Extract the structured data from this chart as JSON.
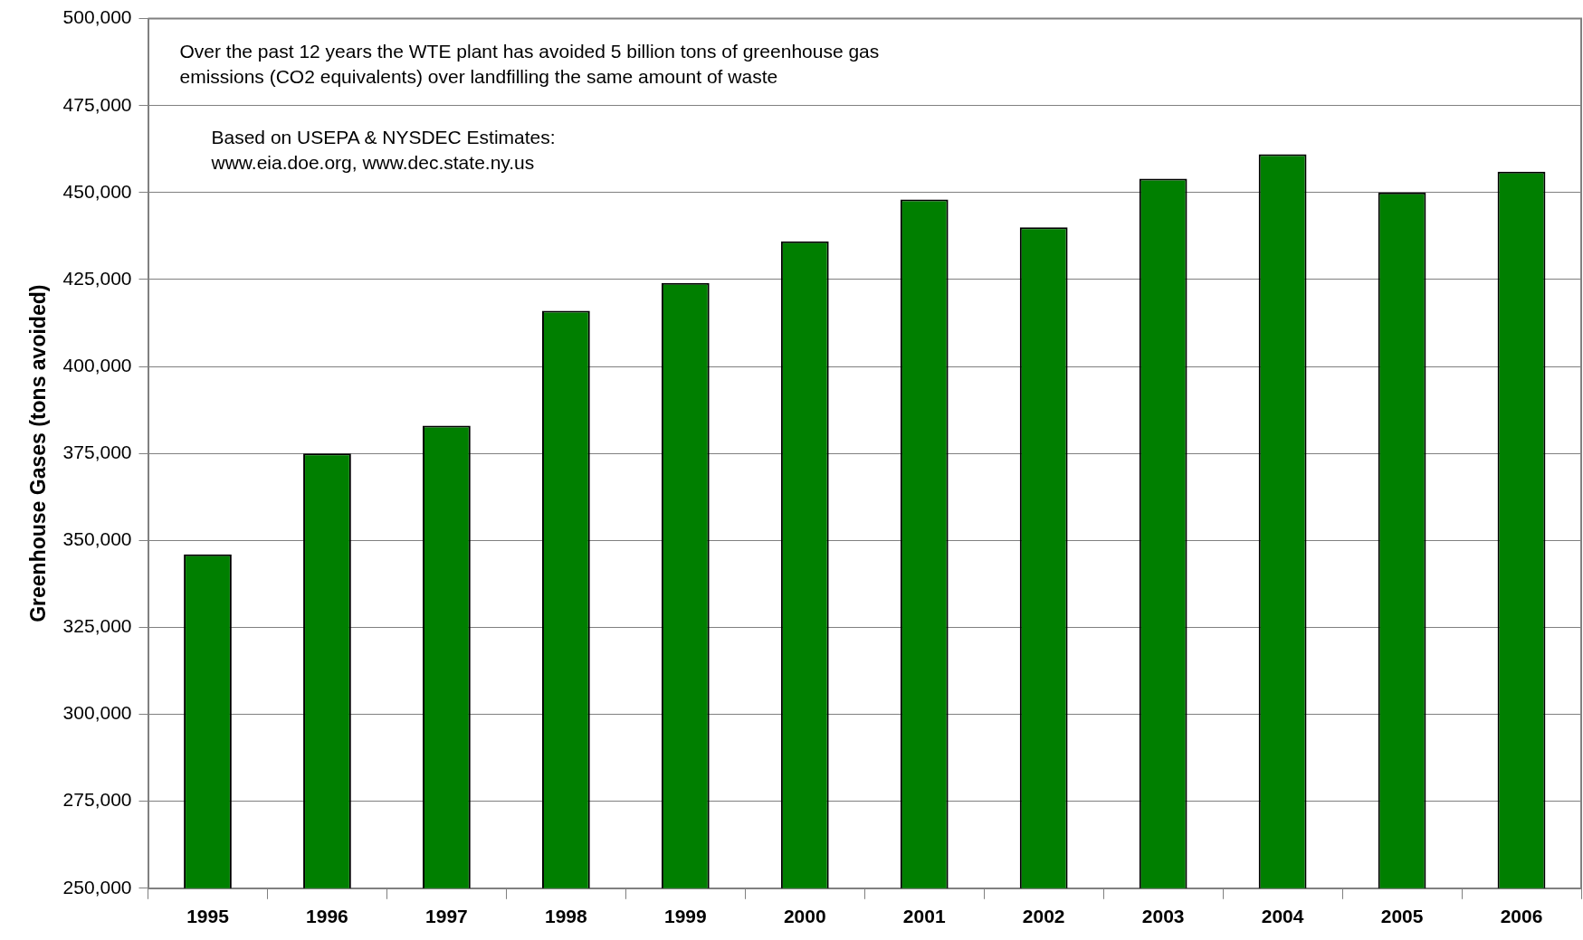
{
  "chart_data": {
    "type": "bar",
    "ylabel": "Greenhouse Gases (tons avoided)",
    "categories": [
      "1995",
      "1996",
      "1997",
      "1998",
      "1999",
      "2000",
      "2001",
      "2002",
      "2003",
      "2004",
      "2005",
      "2006"
    ],
    "values": [
      346000,
      375000,
      383000,
      416000,
      424000,
      436000,
      448000,
      440000,
      454000,
      461000,
      450000,
      456000
    ],
    "color": "#007f00",
    "ylim": [
      250000,
      500000
    ],
    "yticks": [
      {
        "value": 250000,
        "label": "250,000"
      },
      {
        "value": 275000,
        "label": "275,000"
      },
      {
        "value": 300000,
        "label": "300,000"
      },
      {
        "value": 325000,
        "label": "325,000"
      },
      {
        "value": 350000,
        "label": "350,000"
      },
      {
        "value": 375000,
        "label": "375,000"
      },
      {
        "value": 400000,
        "label": "400,000"
      },
      {
        "value": 425000,
        "label": "425,000"
      },
      {
        "value": 450000,
        "label": "450,000"
      },
      {
        "value": 475000,
        "label": "475,000"
      },
      {
        "value": 500000,
        "label": "500,000"
      }
    ],
    "grid": "y",
    "legend": false,
    "annotations": [
      "Over the past 12 years the WTE plant has avoided 5 billion tons of greenhouse gas\nemissions (CO2 equivalents) over landfilling the same amount of waste",
      "Based on USEPA & NYSDEC Estimates:\nwww.eia.doe.org, www.dec.state.ny.us"
    ]
  }
}
